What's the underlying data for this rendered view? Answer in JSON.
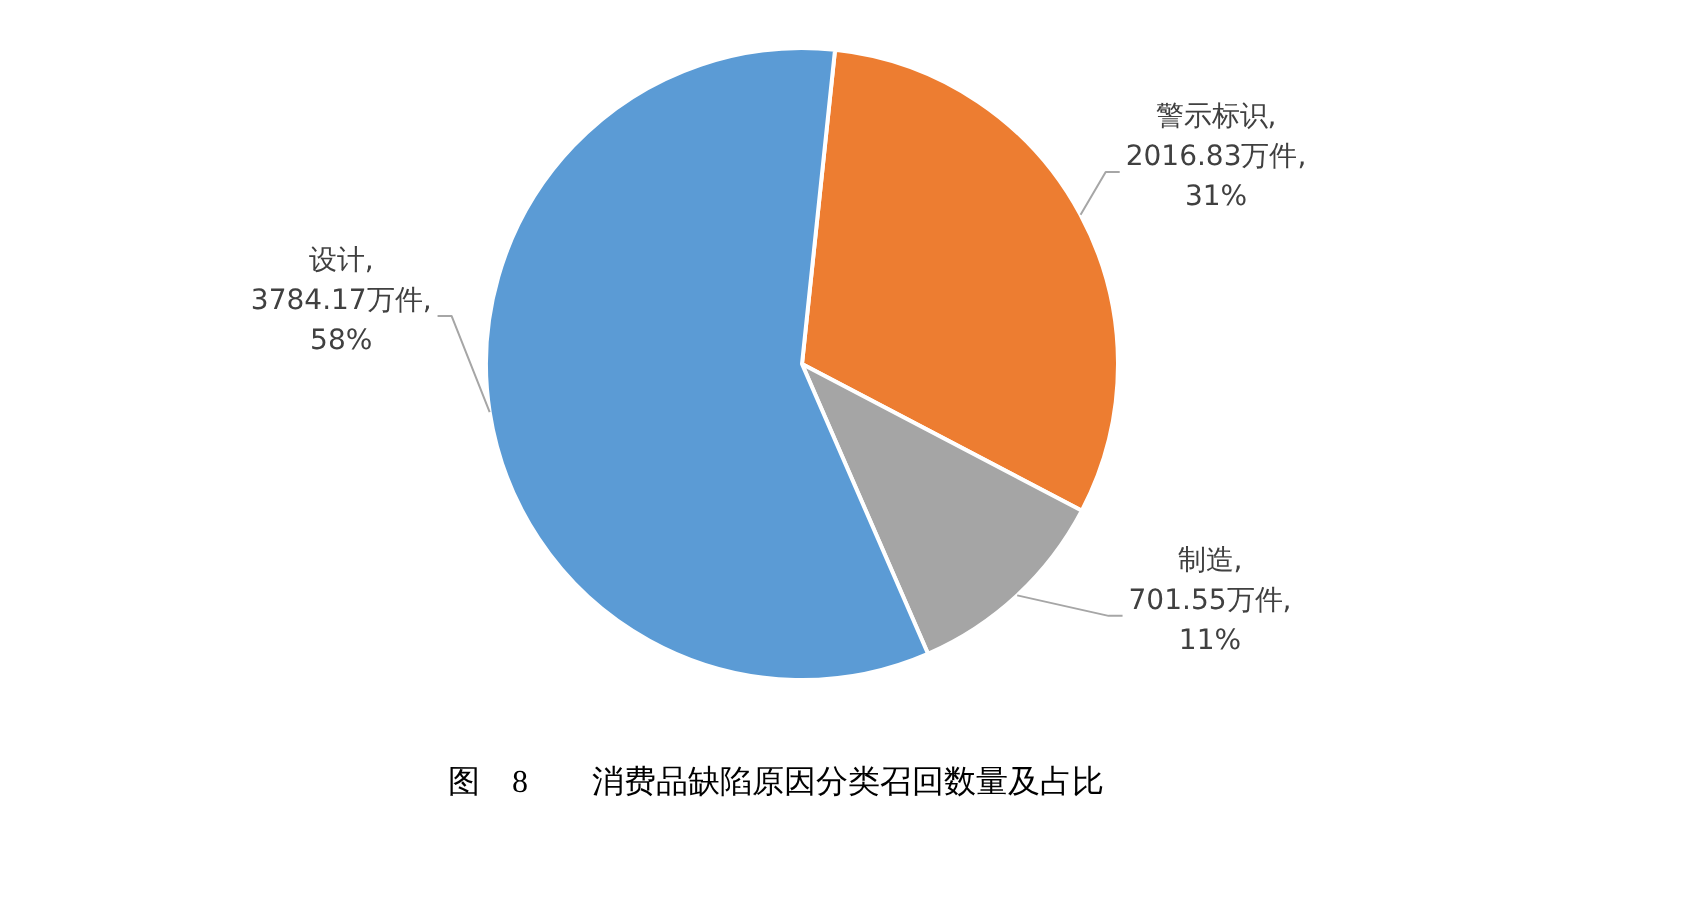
{
  "chart_data": {
    "type": "pie",
    "title": "图　8　　消费品缺陷原因分类召回数量及占比",
    "categories": [
      "警示标识",
      "制造",
      "设计"
    ],
    "values": [
      2016.83,
      701.55,
      3784.17
    ],
    "colors": [
      "#ed7d31",
      "#a5a5a5",
      "#5b9bd5"
    ],
    "value_labels": [
      ",\n2016.83万件,\n31%",
      ",\n701.55万件,\n11%",
      ",\n3784.17万件,\n58%"
    ]
  }
}
